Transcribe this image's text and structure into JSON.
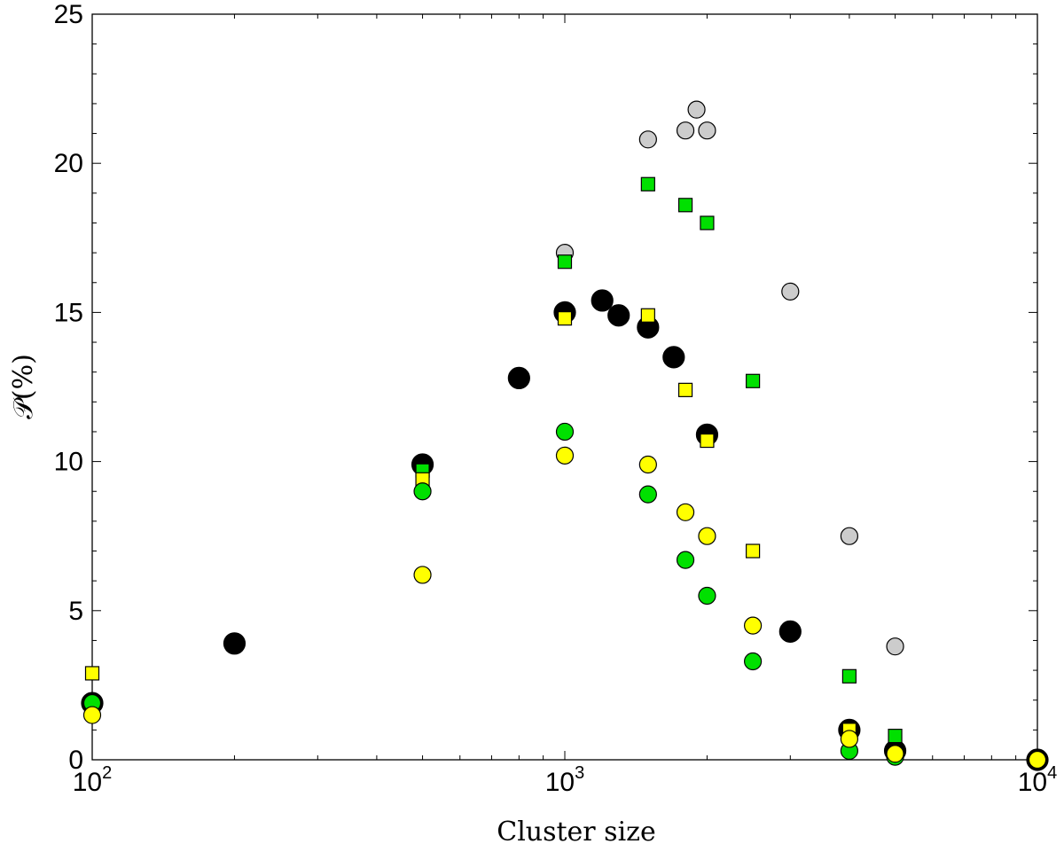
{
  "chart_data": {
    "type": "scatter",
    "xlabel": "Cluster size",
    "ylabel": "𝒫(%)",
    "xscale": "log",
    "xlim": [
      100,
      10000
    ],
    "ylim": [
      0,
      25
    ],
    "grid": false,
    "x_ticks": [
      {
        "value": 100,
        "base": "10",
        "exp": "2"
      },
      {
        "value": 1000,
        "base": "10",
        "exp": "3"
      },
      {
        "value": 10000,
        "base": "10",
        "exp": "4"
      }
    ],
    "y_ticks": [
      "0",
      "5",
      "10",
      "15",
      "20",
      "25"
    ],
    "series": [
      {
        "marker": "circle",
        "size": "large",
        "color": "#000000",
        "points": [
          [
            100,
            1.9
          ],
          [
            200,
            3.9
          ],
          [
            500,
            9.9
          ],
          [
            800,
            12.8
          ],
          [
            1000,
            15.0
          ],
          [
            1200,
            15.4
          ],
          [
            1300,
            14.9
          ],
          [
            1500,
            14.5
          ],
          [
            1700,
            13.5
          ],
          [
            2000,
            10.9
          ],
          [
            3000,
            4.3
          ],
          [
            4000,
            1.0
          ],
          [
            5000,
            0.3
          ],
          [
            10000,
            0.0
          ]
        ]
      },
      {
        "marker": "circle",
        "size": "small",
        "color": "#cccccc",
        "points": [
          [
            1000,
            17.0
          ],
          [
            1500,
            20.8
          ],
          [
            1800,
            21.1
          ],
          [
            1900,
            21.8
          ],
          [
            2000,
            21.1
          ],
          [
            3000,
            15.7
          ],
          [
            4000,
            7.5
          ],
          [
            5000,
            3.8
          ]
        ]
      },
      {
        "marker": "square",
        "size": "small",
        "color": "#00e000",
        "points": [
          [
            100,
            1.9
          ],
          [
            500,
            9.7
          ],
          [
            1000,
            16.7
          ],
          [
            1500,
            19.3
          ],
          [
            1800,
            18.6
          ],
          [
            2000,
            18.0
          ],
          [
            2500,
            12.7
          ],
          [
            4000,
            2.8
          ],
          [
            5000,
            0.8
          ],
          [
            10000,
            0.0
          ]
        ]
      },
      {
        "marker": "square",
        "size": "small",
        "color": "#ffff00",
        "points": [
          [
            100,
            2.9
          ],
          [
            500,
            9.4
          ],
          [
            1000,
            14.8
          ],
          [
            1500,
            14.9
          ],
          [
            1800,
            12.4
          ],
          [
            2000,
            10.7
          ],
          [
            2500,
            7.0
          ],
          [
            4000,
            1.0
          ],
          [
            5000,
            0.2
          ],
          [
            10000,
            0.0
          ]
        ]
      },
      {
        "marker": "circle",
        "size": "small",
        "color": "#00e000",
        "points": [
          [
            100,
            1.9
          ],
          [
            500,
            9.0
          ],
          [
            1000,
            11.0
          ],
          [
            1500,
            8.9
          ],
          [
            1800,
            6.7
          ],
          [
            2000,
            5.5
          ],
          [
            2500,
            3.3
          ],
          [
            4000,
            0.3
          ],
          [
            5000,
            0.1
          ]
        ]
      },
      {
        "marker": "circle",
        "size": "small",
        "color": "#ffff00",
        "points": [
          [
            100,
            1.5
          ],
          [
            500,
            6.2
          ],
          [
            1000,
            10.2
          ],
          [
            1500,
            9.9
          ],
          [
            1800,
            8.3
          ],
          [
            2000,
            7.5
          ],
          [
            2500,
            4.5
          ],
          [
            4000,
            0.7
          ],
          [
            5000,
            0.2
          ],
          [
            10000,
            0.0
          ]
        ]
      }
    ]
  }
}
